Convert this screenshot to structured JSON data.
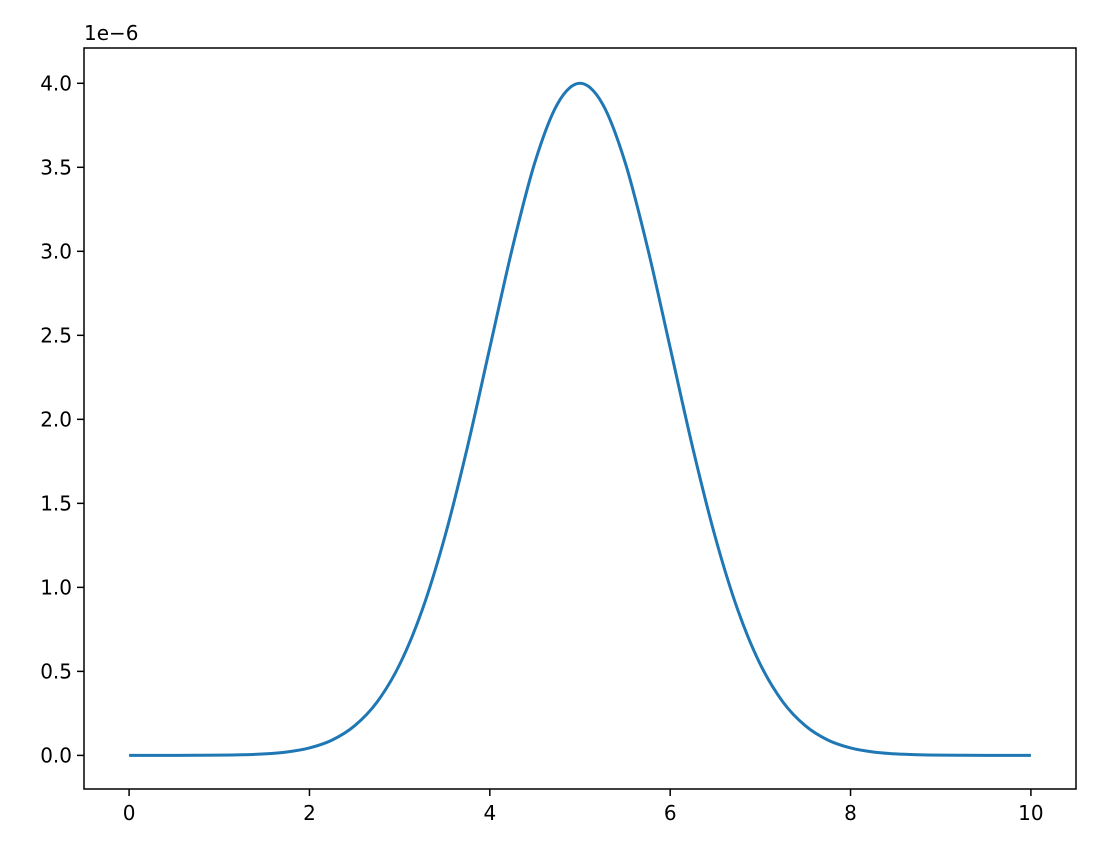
{
  "chart_data": {
    "type": "line",
    "title": "",
    "xlabel": "",
    "ylabel": "",
    "y_offset_text": "1e−6",
    "y_scale_factor": 1e-06,
    "xlim": [
      -0.5,
      10.5
    ],
    "ylim": [
      -0.2,
      4.21
    ],
    "x_ticks": [
      0,
      2,
      4,
      6,
      8,
      10
    ],
    "x_tick_labels": [
      "0",
      "2",
      "4",
      "6",
      "8",
      "10"
    ],
    "y_ticks": [
      0.0,
      0.5,
      1.0,
      1.5,
      2.0,
      2.5,
      3.0,
      3.5,
      4.0
    ],
    "y_tick_labels": [
      "0.0",
      "0.5",
      "1.0",
      "1.5",
      "2.0",
      "2.5",
      "3.0",
      "3.5",
      "4.0"
    ],
    "grid": false,
    "series": [
      {
        "color": "#1f77b4",
        "x": [
          0,
          0.25,
          0.5,
          0.75,
          1,
          1.25,
          1.5,
          1.75,
          2,
          2.25,
          2.5,
          2.75,
          3,
          3.25,
          3.5,
          3.75,
          4,
          4.25,
          4.5,
          4.75,
          5,
          5.25,
          5.5,
          5.75,
          6,
          6.25,
          6.5,
          6.75,
          7,
          7.25,
          7.5,
          7.75,
          8,
          8.25,
          8.5,
          8.75,
          9,
          9.25,
          9.5,
          9.75,
          10
        ],
        "y": [
          0,
          0.0001,
          0.0002,
          0.0005,
          0.0013,
          0.0036,
          0.0088,
          0.0203,
          0.0444,
          0.091,
          0.176,
          0.318,
          0.541,
          0.865,
          1.299,
          1.831,
          2.426,
          3.019,
          3.53,
          3.877,
          4.0,
          3.877,
          3.53,
          3.019,
          2.426,
          1.831,
          1.299,
          0.865,
          0.541,
          0.318,
          0.176,
          0.091,
          0.0444,
          0.0203,
          0.0088,
          0.0036,
          0.0013,
          0.0005,
          0.0002,
          0.0001,
          0
        ]
      }
    ]
  }
}
